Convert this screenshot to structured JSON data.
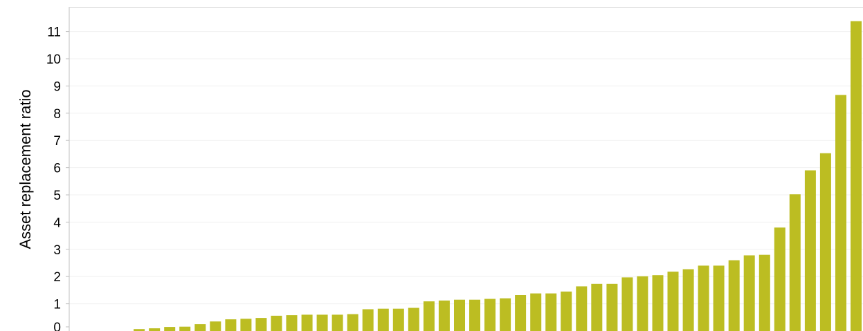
{
  "chart_data": {
    "type": "bar",
    "ylabel": "Asset replacement ratio",
    "xlabel": "",
    "title": "",
    "ylim": [
      0,
      11.5
    ],
    "yticks": [
      0,
      1,
      2,
      3,
      4,
      5,
      6,
      7,
      8,
      9,
      10,
      11
    ],
    "grid": true,
    "legend": "none",
    "bar_color": "#bcbd22",
    "values": [
      0,
      0,
      0,
      0.07,
      0.1,
      0.15,
      0.16,
      0.25,
      0.35,
      0.43,
      0.45,
      0.48,
      0.56,
      0.58,
      0.6,
      0.6,
      0.6,
      0.62,
      0.8,
      0.82,
      0.82,
      0.85,
      1.09,
      1.12,
      1.15,
      1.15,
      1.18,
      1.2,
      1.32,
      1.38,
      1.38,
      1.45,
      1.64,
      1.73,
      1.73,
      1.97,
      2.01,
      2.05,
      2.18,
      2.27,
      2.4,
      2.4,
      2.6,
      2.78,
      2.8,
      3.8,
      5.02,
      5.9,
      6.53,
      8.67,
      11.38
    ]
  }
}
